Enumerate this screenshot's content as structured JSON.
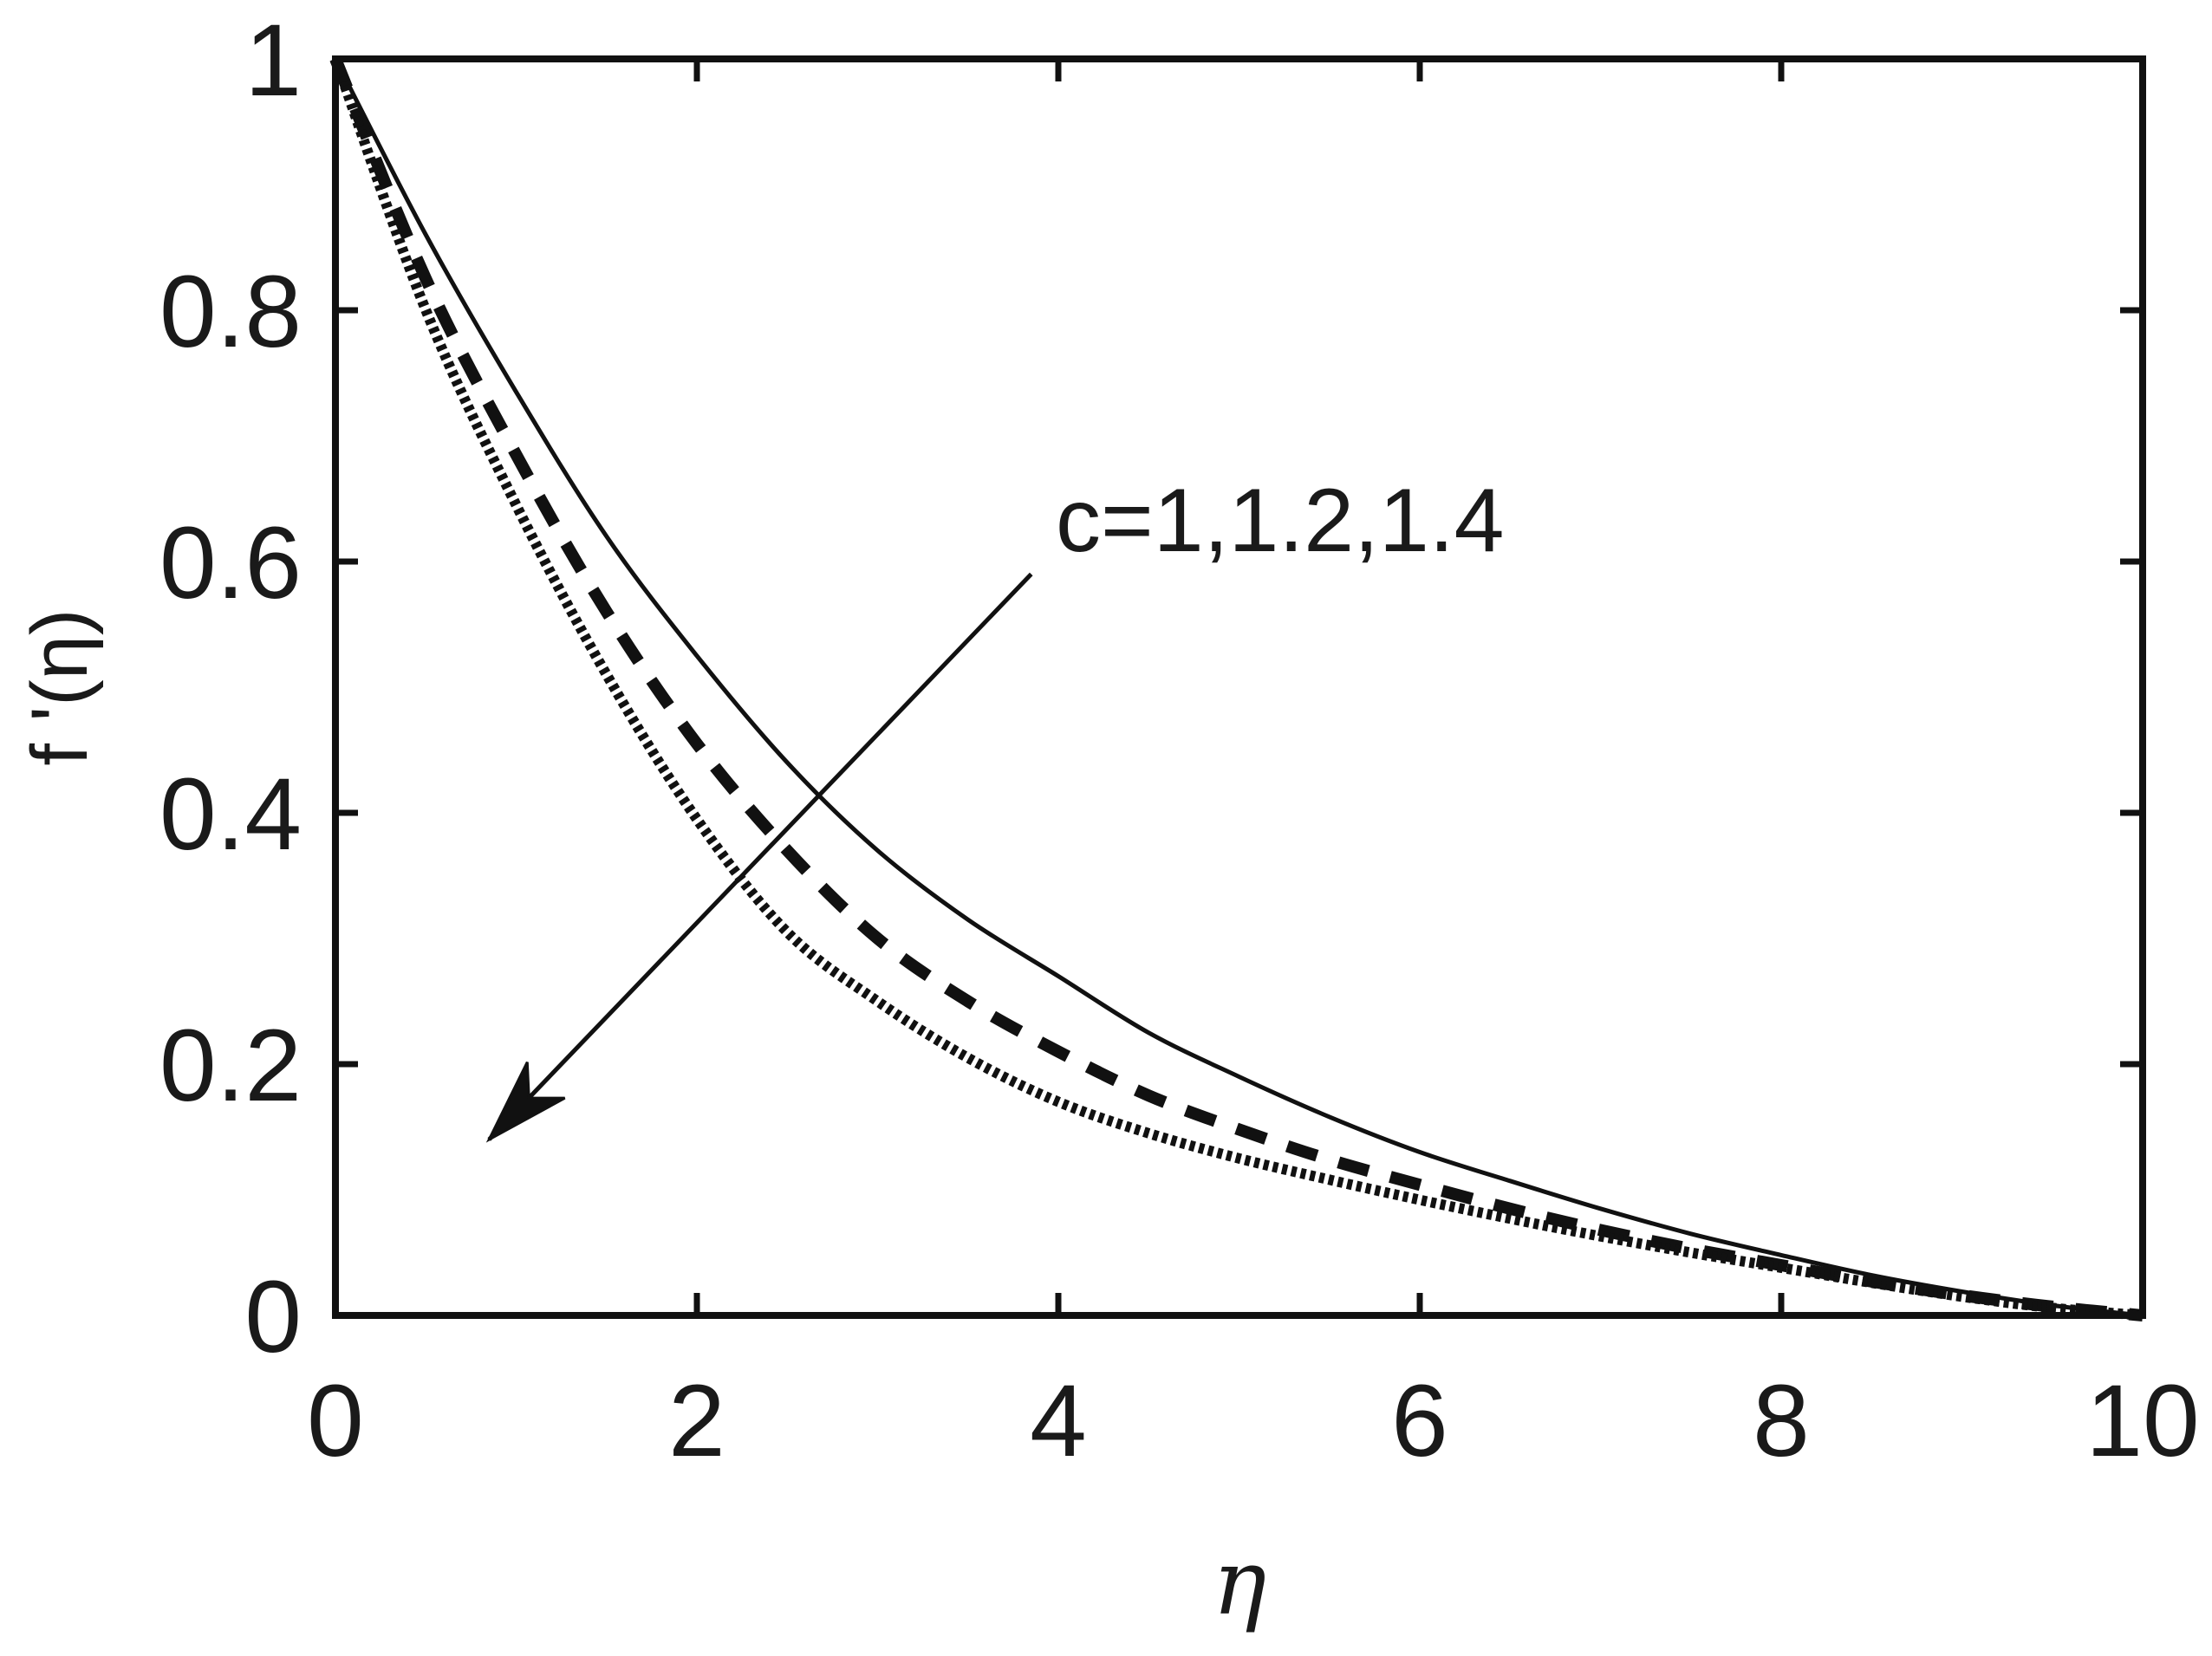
{
  "chart_data": {
    "type": "line",
    "title": "",
    "xlabel": "η",
    "ylabel": "f '(η)",
    "xlim": [
      0,
      10
    ],
    "ylim": [
      0,
      1
    ],
    "xticks": [
      "0",
      "2",
      "4",
      "6",
      "8",
      "10"
    ],
    "yticks": [
      "0",
      "0.2",
      "0.4",
      "0.6",
      "0.8",
      "1"
    ],
    "grid": false,
    "legend": "none",
    "series": [
      {
        "style": "solid",
        "x": [
          0,
          0.5,
          1,
          1.5,
          2,
          2.5,
          3,
          3.5,
          4,
          4.5,
          5,
          5.5,
          6,
          6.5,
          7,
          7.5,
          8,
          8.5,
          9,
          9.5,
          10
        ],
        "values": [
          1.0,
          0.86,
          0.735,
          0.62,
          0.525,
          0.44,
          0.37,
          0.315,
          0.27,
          0.225,
          0.19,
          0.158,
          0.13,
          0.107,
          0.085,
          0.065,
          0.048,
          0.032,
          0.019,
          0.008,
          0.0
        ]
      },
      {
        "style": "dashed",
        "x": [
          0,
          0.5,
          1,
          1.5,
          2,
          2.5,
          3,
          3.5,
          4,
          4.5,
          5,
          5.5,
          6,
          6.5,
          7,
          7.5,
          8,
          8.5,
          9,
          9.5,
          10
        ],
        "values": [
          1.0,
          0.825,
          0.685,
          0.56,
          0.455,
          0.37,
          0.3,
          0.25,
          0.21,
          0.175,
          0.148,
          0.124,
          0.104,
          0.085,
          0.068,
          0.053,
          0.04,
          0.027,
          0.016,
          0.007,
          0.0
        ]
      },
      {
        "style": "dotted",
        "x": [
          0,
          0.5,
          1,
          1.5,
          2,
          2.5,
          3,
          3.5,
          4,
          4.5,
          5,
          5.5,
          6,
          6.5,
          7,
          7.5,
          8,
          8.5,
          9,
          9.5,
          10
        ],
        "values": [
          1.0,
          0.8,
          0.645,
          0.51,
          0.395,
          0.305,
          0.25,
          0.205,
          0.17,
          0.145,
          0.125,
          0.108,
          0.092,
          0.077,
          0.063,
          0.05,
          0.038,
          0.026,
          0.015,
          0.006,
          0.0
        ]
      }
    ],
    "annotations": [
      {
        "text": "c=1,1.2,1.4",
        "arrow_from": [
          3.85,
          0.59
        ],
        "arrow_to": [
          0.85,
          0.14
        ]
      }
    ]
  }
}
